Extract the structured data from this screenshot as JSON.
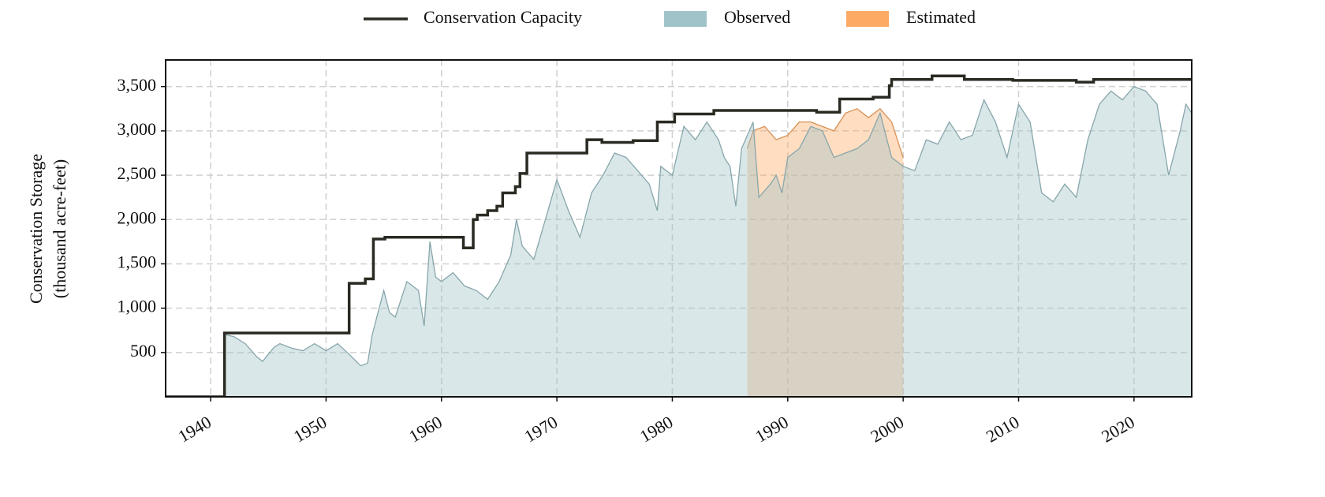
{
  "chart_data": {
    "type": "line",
    "ylabel": [
      "Conservation Storage",
      "(thousand acre-feet)"
    ],
    "xlim": [
      1936.1,
      2025
    ],
    "ylim": [
      0,
      3800
    ],
    "xticks": [
      1940,
      1950,
      1960,
      1970,
      1980,
      1990,
      2000,
      2010,
      2020
    ],
    "yticks": [
      {
        "value": 500,
        "label": "500"
      },
      {
        "value": 1000,
        "label": "1,000"
      },
      {
        "value": 1500,
        "label": "1,500"
      },
      {
        "value": 2000,
        "label": "2,000"
      },
      {
        "value": 2500,
        "label": "2,500"
      },
      {
        "value": 3000,
        "label": "3,000"
      },
      {
        "value": 3500,
        "label": "3,500"
      }
    ],
    "grid": true,
    "legend": "top",
    "series": [
      {
        "name": "Estimated",
        "kind": "area",
        "color": "#fdaa65",
        "x": [
          1986.5,
          1987,
          1988,
          1989,
          1990,
          1991,
          1992,
          1993,
          1994,
          1995,
          1996,
          1997,
          1998,
          1999,
          2000
        ],
        "values": [
          2800,
          3000,
          3050,
          2900,
          2950,
          3100,
          3100,
          3050,
          3000,
          3200,
          3250,
          3150,
          3250,
          3100,
          2700
        ]
      },
      {
        "name": "Observed",
        "kind": "area",
        "color": "#9fc3c9",
        "x": [
          1941.3,
          1942,
          1943,
          1944,
          1944.5,
          1945.5,
          1946,
          1947,
          1948,
          1949,
          1950,
          1951,
          1952,
          1953,
          1953.6,
          1954,
          1955,
          1955.5,
          1956,
          1957,
          1958,
          1958.5,
          1959,
          1959.5,
          1960,
          1961,
          1962,
          1963,
          1964,
          1965,
          1966,
          1966.5,
          1967,
          1968,
          1969,
          1970,
          1971,
          1972,
          1973,
          1974,
          1975,
          1976,
          1977,
          1978,
          1978.7,
          1979,
          1980,
          1981,
          1982,
          1983,
          1984,
          1984.5,
          1985,
          1985.5,
          1986,
          1987,
          1987.5,
          1988.5,
          1989,
          1989.5,
          1990,
          1991,
          1992,
          1993,
          1994,
          1995,
          1996,
          1997,
          1998,
          1999,
          2000,
          2001,
          2002,
          2003,
          2004,
          2005,
          2006,
          2007,
          2008,
          2009,
          2010,
          2011,
          2012,
          2013,
          2014,
          2015,
          2016,
          2017,
          2018,
          2019,
          2020,
          2021,
          2022,
          2023,
          2024,
          2024.5,
          2025
        ],
        "values": [
          700,
          680,
          600,
          450,
          400,
          560,
          600,
          550,
          520,
          600,
          520,
          600,
          480,
          350,
          380,
          700,
          1200,
          950,
          900,
          1300,
          1200,
          800,
          1750,
          1350,
          1300,
          1400,
          1250,
          1200,
          1100,
          1300,
          1600,
          2000,
          1700,
          1550,
          2000,
          2450,
          2100,
          1800,
          2300,
          2500,
          2750,
          2700,
          2550,
          2400,
          2100,
          2600,
          2500,
          3050,
          2900,
          3100,
          2900,
          2700,
          2600,
          2150,
          2800,
          3100,
          2250,
          2400,
          2500,
          2300,
          2700,
          2800,
          3050,
          3000,
          2700,
          2750,
          2800,
          2900,
          3200,
          2700,
          2600,
          2550,
          2900,
          2850,
          3100,
          2900,
          2950,
          3350,
          3100,
          2700,
          3300,
          3100,
          2300,
          2200,
          2400,
          2250,
          2900,
          3300,
          3450,
          3350,
          3500,
          3450,
          3300,
          2500,
          3000,
          3300,
          3200
        ]
      },
      {
        "name": "Conservation Capacity",
        "kind": "step",
        "color": "#2b2a22",
        "x": [
          1936.1,
          1941.2,
          1952.0,
          1953.4,
          1954.1,
          1955.1,
          1961.9,
          1962.75,
          1963.1,
          1964,
          1964.8,
          1965.3,
          1966.4,
          1966.8,
          1967.4,
          1972.6,
          1973.9,
          1976.6,
          1978.7,
          1980.2,
          1983.6,
          1992.5,
          1994.5,
          1997.4,
          1998.8,
          1999,
          2002.5,
          2005.3,
          2009.5,
          2015,
          2016.5,
          2025
        ],
        "values": [
          0,
          720,
          1280,
          1330,
          1780,
          1800,
          1680,
          2000,
          2050,
          2100,
          2150,
          2300,
          2370,
          2520,
          2750,
          2900,
          2870,
          2890,
          3100,
          3190,
          3230,
          3210,
          3360,
          3380,
          3510,
          3580,
          3620,
          3580,
          3570,
          3550,
          3580,
          3580
        ]
      }
    ]
  }
}
